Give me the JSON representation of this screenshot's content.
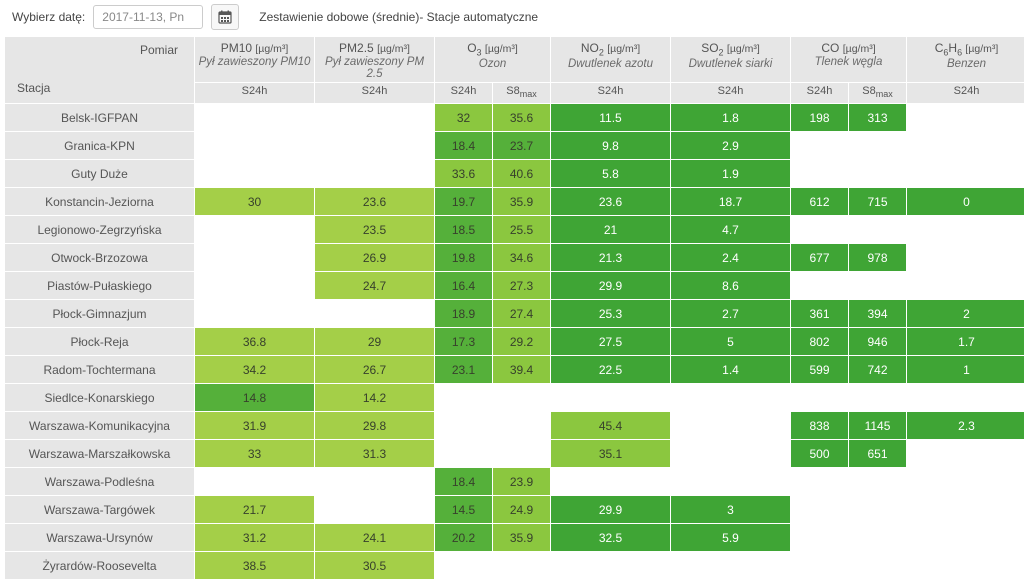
{
  "topbar": {
    "choose_label": "Wybierz datę:",
    "date_value": "2017-11-13, Pn",
    "title": "Zestawienie dobowe (średnie)- Stacje automatyczne"
  },
  "header": {
    "corner_right": "Pomiar",
    "corner_left": "Stacja",
    "s24h": "S24h",
    "s8max": "S8max"
  },
  "pollutants": [
    {
      "id": "pm10",
      "label_html": "PM10 <span class='unit'>[µg/m³]</span>",
      "sub": "Pył zawieszony PM10",
      "cols": [
        "S24h"
      ]
    },
    {
      "id": "pm25",
      "label_html": "PM2.5 <span class='unit'>[µg/m³]</span>",
      "sub": "Pył zawieszony PM 2.5",
      "cols": [
        "S24h"
      ]
    },
    {
      "id": "o3",
      "label_html": "O<sub>3</sub> <span class='unit'>[µg/m³]</span>",
      "sub": "Ozon",
      "cols": [
        "S24h",
        "S8max"
      ]
    },
    {
      "id": "no2",
      "label_html": "NO<sub>2</sub> <span class='unit'>[µg/m³]</span>",
      "sub": "Dwutlenek azotu",
      "cols": [
        "S24h"
      ]
    },
    {
      "id": "so2",
      "label_html": "SO<sub>2</sub> <span class='unit'>[µg/m³]</span>",
      "sub": "Dwutlenek siarki",
      "cols": [
        "S24h"
      ]
    },
    {
      "id": "co",
      "label_html": "CO <span class='unit'>[µg/m³]</span>",
      "sub": "Tlenek węgla",
      "cols": [
        "S24h",
        "S8max"
      ]
    },
    {
      "id": "c6h6",
      "label_html": "C<sub>6</sub>H<sub>6</sub> <span class='unit'>[µg/m³]</span>",
      "sub": "Benzen",
      "cols": [
        "S24h"
      ]
    }
  ],
  "colors": {
    "light": "#a4cf48",
    "mid": "#8bc73f",
    "dark": "#55b03a",
    "darker": "#3fa535"
  },
  "rows": [
    {
      "name": "Belsk-IGFPAN",
      "cells": {
        "o3_s24": {
          "v": "32",
          "c": "mid"
        },
        "o3_s8": {
          "v": "35.6",
          "c": "mid"
        },
        "no2": {
          "v": "11.5",
          "c": "darker"
        },
        "so2": {
          "v": "1.8",
          "c": "darker"
        },
        "co_s24": {
          "v": "198",
          "c": "darker"
        },
        "co_s8": {
          "v": "313",
          "c": "darker"
        }
      }
    },
    {
      "name": "Granica-KPN",
      "cells": {
        "o3_s24": {
          "v": "18.4",
          "c": "dark"
        },
        "o3_s8": {
          "v": "23.7",
          "c": "dark"
        },
        "no2": {
          "v": "9.8",
          "c": "darker"
        },
        "so2": {
          "v": "2.9",
          "c": "darker"
        }
      }
    },
    {
      "name": "Guty Duże",
      "cells": {
        "o3_s24": {
          "v": "33.6",
          "c": "mid"
        },
        "o3_s8": {
          "v": "40.6",
          "c": "mid"
        },
        "no2": {
          "v": "5.8",
          "c": "darker"
        },
        "so2": {
          "v": "1.9",
          "c": "darker"
        }
      }
    },
    {
      "name": "Konstancin-Jeziorna",
      "cells": {
        "pm10": {
          "v": "30",
          "c": "light"
        },
        "pm25": {
          "v": "23.6",
          "c": "light"
        },
        "o3_s24": {
          "v": "19.7",
          "c": "dark"
        },
        "o3_s8": {
          "v": "35.9",
          "c": "mid"
        },
        "no2": {
          "v": "23.6",
          "c": "darker"
        },
        "so2": {
          "v": "18.7",
          "c": "darker"
        },
        "co_s24": {
          "v": "612",
          "c": "darker"
        },
        "co_s8": {
          "v": "715",
          "c": "darker"
        },
        "c6h6": {
          "v": "0",
          "c": "darker"
        }
      }
    },
    {
      "name": "Legionowo-Zegrzyńska",
      "cells": {
        "pm25": {
          "v": "23.5",
          "c": "light"
        },
        "o3_s24": {
          "v": "18.5",
          "c": "dark"
        },
        "o3_s8": {
          "v": "25.5",
          "c": "mid"
        },
        "no2": {
          "v": "21",
          "c": "darker"
        },
        "so2": {
          "v": "4.7",
          "c": "darker"
        }
      }
    },
    {
      "name": "Otwock-Brzozowa",
      "cells": {
        "pm25": {
          "v": "26.9",
          "c": "light"
        },
        "o3_s24": {
          "v": "19.8",
          "c": "dark"
        },
        "o3_s8": {
          "v": "34.6",
          "c": "mid"
        },
        "no2": {
          "v": "21.3",
          "c": "darker"
        },
        "so2": {
          "v": "2.4",
          "c": "darker"
        },
        "co_s24": {
          "v": "677",
          "c": "darker"
        },
        "co_s8": {
          "v": "978",
          "c": "darker"
        }
      }
    },
    {
      "name": "Piastów-Pułaskiego",
      "cells": {
        "pm25": {
          "v": "24.7",
          "c": "light"
        },
        "o3_s24": {
          "v": "16.4",
          "c": "dark"
        },
        "o3_s8": {
          "v": "27.3",
          "c": "mid"
        },
        "no2": {
          "v": "29.9",
          "c": "darker"
        },
        "so2": {
          "v": "8.6",
          "c": "darker"
        }
      }
    },
    {
      "name": "Płock-Gimnazjum",
      "cells": {
        "o3_s24": {
          "v": "18.9",
          "c": "dark"
        },
        "o3_s8": {
          "v": "27.4",
          "c": "mid"
        },
        "no2": {
          "v": "25.3",
          "c": "darker"
        },
        "so2": {
          "v": "2.7",
          "c": "darker"
        },
        "co_s24": {
          "v": "361",
          "c": "darker"
        },
        "co_s8": {
          "v": "394",
          "c": "darker"
        },
        "c6h6": {
          "v": "2",
          "c": "darker"
        }
      }
    },
    {
      "name": "Płock-Reja",
      "cells": {
        "pm10": {
          "v": "36.8",
          "c": "light"
        },
        "pm25": {
          "v": "29",
          "c": "light"
        },
        "o3_s24": {
          "v": "17.3",
          "c": "dark"
        },
        "o3_s8": {
          "v": "29.2",
          "c": "mid"
        },
        "no2": {
          "v": "27.5",
          "c": "darker"
        },
        "so2": {
          "v": "5",
          "c": "darker"
        },
        "co_s24": {
          "v": "802",
          "c": "darker"
        },
        "co_s8": {
          "v": "946",
          "c": "darker"
        },
        "c6h6": {
          "v": "1.7",
          "c": "darker"
        }
      }
    },
    {
      "name": "Radom-Tochtermana",
      "cells": {
        "pm10": {
          "v": "34.2",
          "c": "light"
        },
        "pm25": {
          "v": "26.7",
          "c": "light"
        },
        "o3_s24": {
          "v": "23.1",
          "c": "dark"
        },
        "o3_s8": {
          "v": "39.4",
          "c": "mid"
        },
        "no2": {
          "v": "22.5",
          "c": "darker"
        },
        "so2": {
          "v": "1.4",
          "c": "darker"
        },
        "co_s24": {
          "v": "599",
          "c": "darker"
        },
        "co_s8": {
          "v": "742",
          "c": "darker"
        },
        "c6h6": {
          "v": "1",
          "c": "darker"
        }
      }
    },
    {
      "name": "Siedlce-Konarskiego",
      "cells": {
        "pm10": {
          "v": "14.8",
          "c": "dark"
        },
        "pm25": {
          "v": "14.2",
          "c": "light"
        }
      }
    },
    {
      "name": "Warszawa-Komunikacyjna",
      "cells": {
        "pm10": {
          "v": "31.9",
          "c": "light"
        },
        "pm25": {
          "v": "29.8",
          "c": "light"
        },
        "no2": {
          "v": "45.4",
          "c": "mid"
        },
        "co_s24": {
          "v": "838",
          "c": "darker"
        },
        "co_s8": {
          "v": "1145",
          "c": "darker"
        },
        "c6h6": {
          "v": "2.3",
          "c": "darker"
        }
      }
    },
    {
      "name": "Warszawa-Marszałkowska",
      "cells": {
        "pm10": {
          "v": "33",
          "c": "light"
        },
        "pm25": {
          "v": "31.3",
          "c": "light"
        },
        "no2": {
          "v": "35.1",
          "c": "mid"
        },
        "co_s24": {
          "v": "500",
          "c": "darker"
        },
        "co_s8": {
          "v": "651",
          "c": "darker"
        }
      }
    },
    {
      "name": "Warszawa-Podleśna",
      "cells": {
        "o3_s24": {
          "v": "18.4",
          "c": "dark"
        },
        "o3_s8": {
          "v": "23.9",
          "c": "mid"
        }
      }
    },
    {
      "name": "Warszawa-Targówek",
      "cells": {
        "pm10": {
          "v": "21.7",
          "c": "light"
        },
        "o3_s24": {
          "v": "14.5",
          "c": "dark"
        },
        "o3_s8": {
          "v": "24.9",
          "c": "mid"
        },
        "no2": {
          "v": "29.9",
          "c": "darker"
        },
        "so2": {
          "v": "3",
          "c": "darker"
        }
      }
    },
    {
      "name": "Warszawa-Ursynów",
      "cells": {
        "pm10": {
          "v": "31.2",
          "c": "light"
        },
        "pm25": {
          "v": "24.1",
          "c": "light"
        },
        "o3_s24": {
          "v": "20.2",
          "c": "dark"
        },
        "o3_s8": {
          "v": "35.9",
          "c": "mid"
        },
        "no2": {
          "v": "32.5",
          "c": "darker"
        },
        "so2": {
          "v": "5.9",
          "c": "darker"
        }
      }
    },
    {
      "name": "Żyrardów-Roosevelta",
      "cells": {
        "pm10": {
          "v": "38.5",
          "c": "light"
        },
        "pm25": {
          "v": "30.5",
          "c": "light"
        }
      }
    }
  ]
}
